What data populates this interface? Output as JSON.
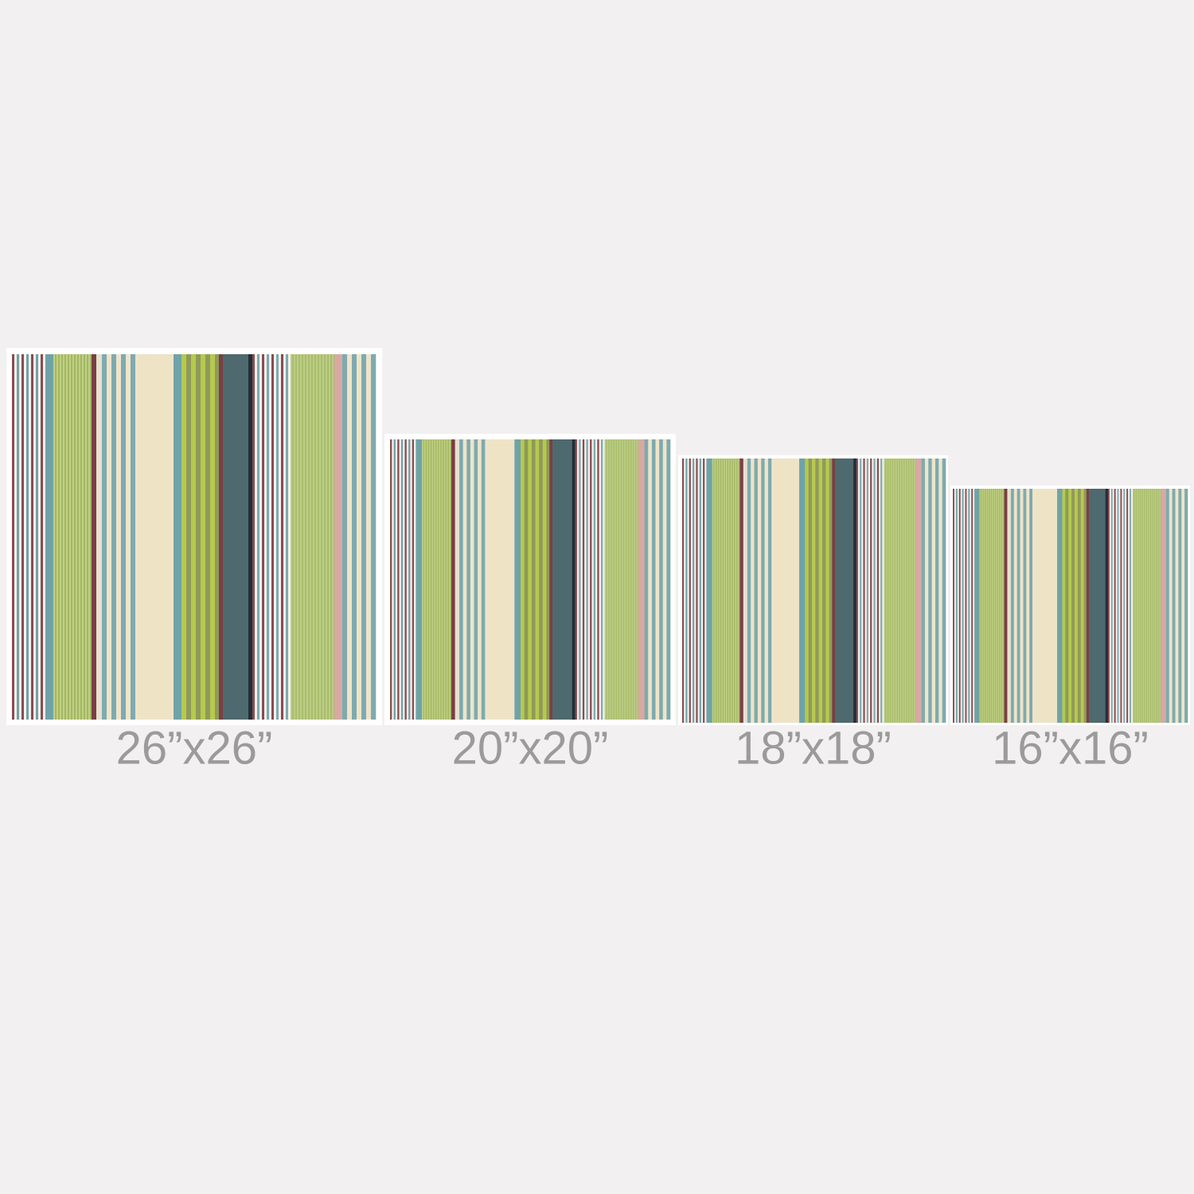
{
  "panels": [
    {
      "label": "26”x26”"
    },
    {
      "label": "20”x20”"
    },
    {
      "label": "18”x18”"
    },
    {
      "label": "16”x16”"
    }
  ]
}
